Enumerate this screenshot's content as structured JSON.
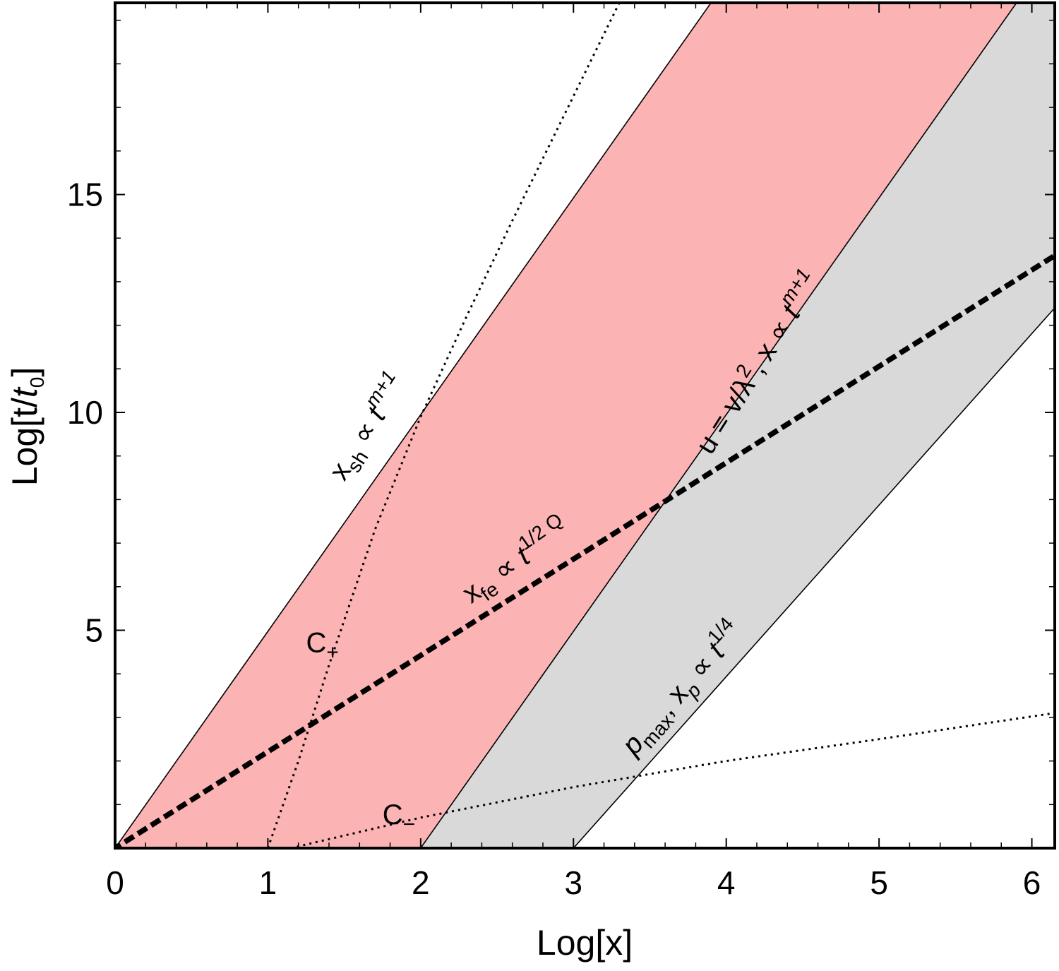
{
  "chart_data": {
    "type": "area",
    "xlabel": "Log[x]",
    "ylabel": "Log[t/t0]",
    "xlim": [
      0,
      6.15
    ],
    "ylim": [
      0,
      19.4
    ],
    "x_ticks": [
      0,
      1,
      2,
      3,
      4,
      5,
      6
    ],
    "y_ticks": [
      5,
      10,
      15
    ],
    "x_tick_labels": [
      "0",
      "1",
      "2",
      "3",
      "4",
      "5",
      "6"
    ],
    "y_tick_labels": [
      "5",
      "10",
      "15"
    ],
    "grid": false,
    "colors": {
      "pink_fill": "#fbb3b4",
      "gray_fill": "#d9d9d9",
      "line": "#000000"
    },
    "regions": [
      {
        "fill": "pink",
        "between": [
          "xsh",
          "u_line"
        ]
      },
      {
        "fill": "gray",
        "between": [
          "u_line",
          "pmax_line"
        ]
      }
    ],
    "series": [
      {
        "key": "xsh",
        "style": "solid",
        "x": [
          0,
          3.9
        ],
        "y": [
          0,
          19.4
        ]
      },
      {
        "key": "u_line",
        "style": "solid",
        "x": [
          2.0,
          5.9
        ],
        "y": [
          0,
          19.4
        ]
      },
      {
        "key": "pmax_line",
        "style": "solid",
        "x": [
          3.0,
          6.15
        ],
        "y": [
          0,
          12.4
        ]
      },
      {
        "key": "xfe",
        "style": "dashed-thick",
        "x": [
          0,
          6.15
        ],
        "y": [
          0,
          13.6
        ]
      },
      {
        "key": "c_plus",
        "style": "dotted",
        "x": [
          1.0,
          1.2,
          1.4,
          1.7,
          2.0,
          2.3,
          2.6,
          3.3
        ],
        "y": [
          0,
          2.0,
          4.2,
          7.3,
          9.9,
          12.2,
          14.4,
          19.4
        ]
      },
      {
        "key": "c_minus",
        "style": "dotted",
        "x": [
          1.15,
          2.0,
          3.0,
          4.0,
          5.0,
          6.15
        ],
        "y": [
          0,
          0.7,
          1.4,
          2.0,
          2.5,
          3.1
        ]
      }
    ],
    "annotations": [
      {
        "key": "xsh_label",
        "base": "x",
        "sub": "sh",
        "mid": " ∝ ",
        "t": "t",
        "sup": "m+1",
        "x": 1.5,
        "y": 8.4,
        "angle": -57.7
      },
      {
        "key": "u_label",
        "text": "u = v/λ",
        "sup1": "2",
        "mid": ", x ∝ ",
        "t": "t",
        "sup": "m+1",
        "x": 3.9,
        "y": 9.0,
        "angle": -57.7
      },
      {
        "key": "xfe_label",
        "base": "x",
        "sub": "fe",
        "mid": " ∝ ",
        "t": "t",
        "sup": "1/2 Q",
        "x": 2.33,
        "y": 5.6,
        "angle": -35.3
      },
      {
        "key": "pmax_label",
        "base": "p",
        "sub": "max",
        "mid": ", ",
        "x2": "x",
        "sub2": "p",
        "mid2": " ∝ ",
        "t": "t",
        "sup": "1/4",
        "x": 3.4,
        "y": 2.1,
        "angle": -48.5
      },
      {
        "key": "c_plus_label",
        "base": "C",
        "sub": "+",
        "x": 1.25,
        "y": 4.5,
        "angle": 0
      },
      {
        "key": "c_minus_label",
        "base": "C",
        "sub": "−",
        "x": 1.75,
        "y": 0.55,
        "angle": 0
      }
    ]
  }
}
